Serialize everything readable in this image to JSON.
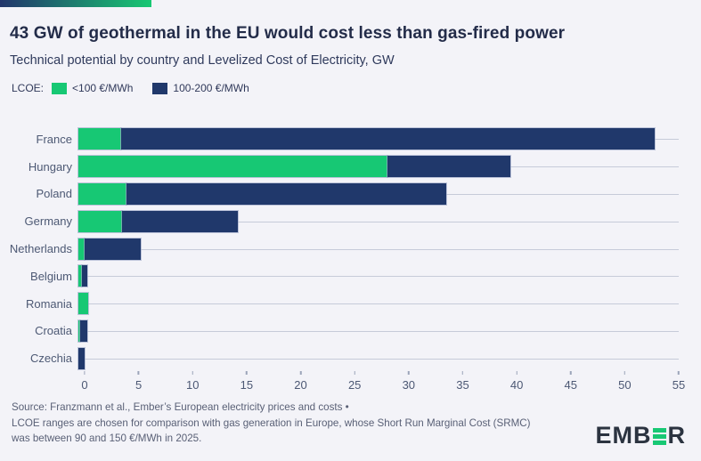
{
  "header": {
    "title": "43 GW of geothermal in the EU would cost less than gas-fired power",
    "subtitle": "Technical potential by country and Levelized Cost of Electricity, GW"
  },
  "legend": {
    "label": "LCOE:",
    "items": [
      {
        "label": "<100 €/MWh",
        "color": "#17c874"
      },
      {
        "label": "100-200 €/MWh",
        "color": "#20386b"
      }
    ]
  },
  "chart_data": {
    "type": "bar",
    "orientation": "horizontal",
    "stacked": true,
    "unit": "GW",
    "categories": [
      "France",
      "Hungary",
      "Poland",
      "Germany",
      "Netherlands",
      "Belgium",
      "Romania",
      "Croatia",
      "Czechia"
    ],
    "series": [
      {
        "name": "<100 €/MWh",
        "color": "#17c874",
        "values": [
          3.9,
          28.3,
          4.4,
          4.0,
          0.6,
          0.35,
          0.9,
          0.15,
          0
        ]
      },
      {
        "name": "100-200 €/MWh",
        "color": "#20386b",
        "values": [
          48.9,
          11.3,
          29.3,
          10.6,
          5.1,
          0.5,
          0,
          0.7,
          0.6
        ]
      }
    ],
    "xlabel": "",
    "ylabel": "",
    "xlim": [
      0,
      55
    ],
    "xticks": [
      0,
      5,
      10,
      15,
      20,
      25,
      30,
      35,
      40,
      45,
      50,
      55
    ],
    "grid": "horizontal gridline per category row",
    "legend_position": "top-left"
  },
  "footer": {
    "source_lines": [
      "Source: Franzmann et al., Ember’s European electricity prices and costs •",
      "LCOE ranges are chosen for comparison with gas generation in Europe, whose Short Run Marginal Cost (SRMC)",
      "was between 90 and 150 €/MWh in 2025."
    ],
    "logo": {
      "left": "EMB",
      "stylized_letter": "E",
      "right": "R"
    }
  },
  "colors": {
    "background": "#f3f3f8",
    "title_text": "#232c49",
    "body_text": "#4d5974",
    "source_text": "#596076",
    "gridline": "#c6cbd9",
    "accent_green": "#17c874",
    "accent_navy": "#20386b",
    "gradient_bar": [
      "#22356b",
      "#18c873"
    ]
  }
}
